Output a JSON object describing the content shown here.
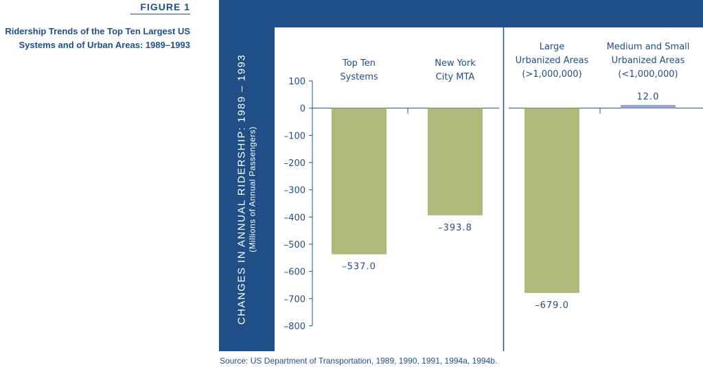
{
  "figure": {
    "label": "FIGURE 1",
    "caption_line1": "Ridership Trends of the Top Ten Largest US",
    "caption_line2": "Systems and of Urban Areas: 1989–1993"
  },
  "source": "Source: US Department of Transportation, 1989, 1990, 1991, 1994a, 1994b.",
  "colors": {
    "panel": "#1f4f86",
    "bar": "#adba7a",
    "bar_positive": "#9aa9cc",
    "text": "#1f4f86"
  },
  "chart_data": {
    "type": "bar",
    "title": "",
    "ylabel": "CHANGES IN ANNUAL RIDERSHIP: 1989 – 1993",
    "ylabel_sub": "(Millions of Annual Passengers)",
    "ylim": [
      -800,
      100
    ],
    "yticks": [
      100,
      0,
      -100,
      -200,
      -300,
      -400,
      -500,
      -600,
      -700,
      -800
    ],
    "ytick_labels": [
      "100",
      "0",
      "–100",
      "–200",
      "–300",
      "–400",
      "–500",
      "–600",
      "–700",
      "–800"
    ],
    "grid": false,
    "categories": [
      [
        "Top Ten",
        "Systems"
      ],
      [
        "New York",
        "City MTA"
      ],
      [
        "Large",
        "Urbanized Areas",
        "(>1,000,000)"
      ],
      [
        "Medium and Small",
        "Urbanized Areas",
        "(<1,000,000)"
      ]
    ],
    "values": [
      -537.0,
      -393.8,
      -679.0,
      12.0
    ],
    "value_labels": [
      "–537.0",
      "–393.8",
      "–679.0",
      "12.0"
    ],
    "groups": [
      [
        0,
        1
      ],
      [
        2,
        3
      ]
    ]
  }
}
